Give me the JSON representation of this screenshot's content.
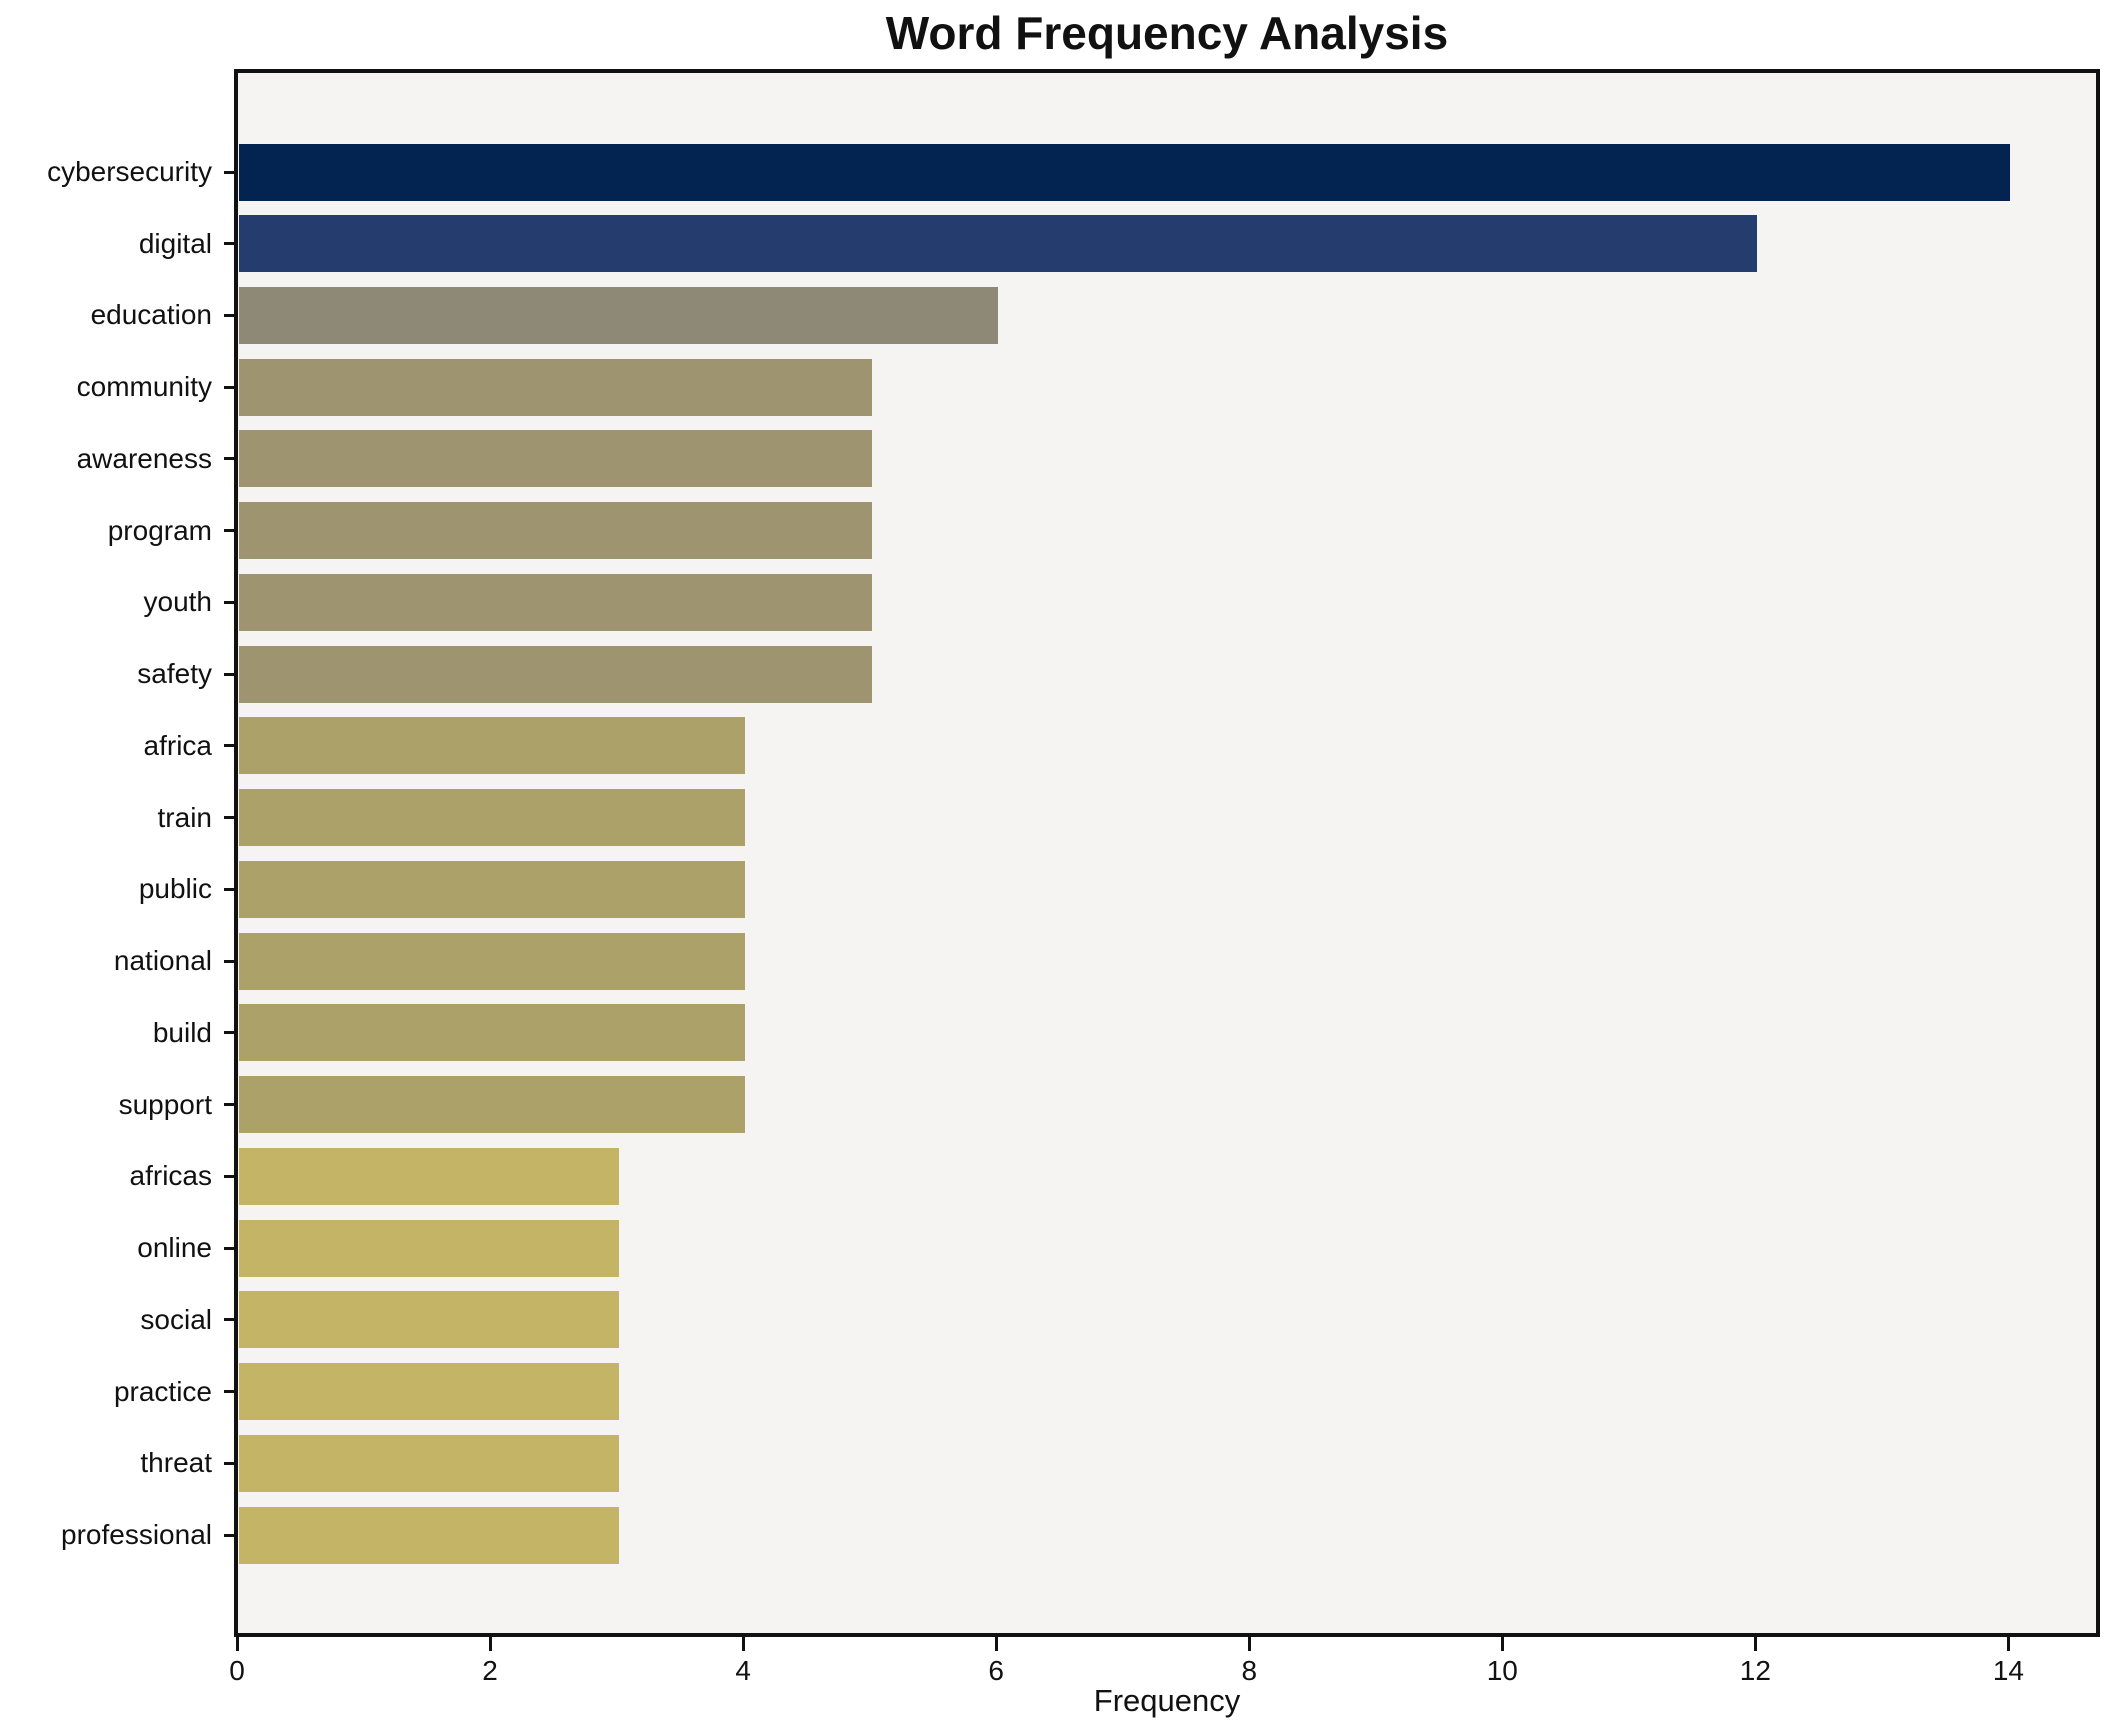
{
  "title": "Word Frequency Analysis",
  "chart_data": {
    "type": "bar",
    "orientation": "horizontal",
    "title": "Word Frequency Analysis",
    "xlabel": "Frequency",
    "ylabel": "",
    "categories": [
      "cybersecurity",
      "digital",
      "education",
      "community",
      "awareness",
      "program",
      "youth",
      "safety",
      "africa",
      "train",
      "public",
      "national",
      "build",
      "support",
      "africas",
      "online",
      "social",
      "practice",
      "threat",
      "professional"
    ],
    "values": [
      14,
      12,
      6,
      5,
      5,
      5,
      5,
      5,
      4,
      4,
      4,
      4,
      4,
      4,
      3,
      3,
      3,
      3,
      3,
      3
    ],
    "bar_colors": [
      "#032350",
      "#243c6e",
      "#8e8877",
      "#9e9570",
      "#9e9570",
      "#9e9570",
      "#9e9570",
      "#9e9570",
      "#aba169",
      "#aba169",
      "#aba169",
      "#aba169",
      "#aba169",
      "#aba169",
      "#c3b466",
      "#c3b466",
      "#c3b466",
      "#c3b466",
      "#c3b466",
      "#c3b466"
    ],
    "xlim": [
      0,
      14.7
    ],
    "xticks": [
      0,
      2,
      4,
      6,
      8,
      10,
      12,
      14
    ],
    "grid": false,
    "legend": null,
    "plot_bg": "#f5f4f3",
    "figure_bg": "#ffffff",
    "spine_color": "#111111",
    "text_color": "#111111"
  }
}
